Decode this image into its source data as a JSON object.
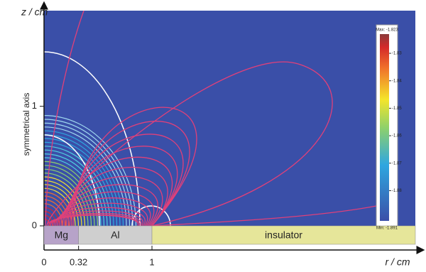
{
  "chart_data": {
    "type": "contour",
    "xlabel": "r / cm",
    "ylabel": "z / cm",
    "axis_note": "symmetrical axis",
    "xlim": [
      0,
      3.44
    ],
    "ylim": [
      0,
      1.8
    ],
    "xticks": [
      0,
      0.32,
      1
    ],
    "yticks": [
      0,
      1
    ],
    "regions": [
      {
        "label": "Mg",
        "color": "#b7a3c9"
      },
      {
        "label": "Al",
        "color": "#cfcfcf"
      },
      {
        "label": "insulator",
        "color": "#e6e69a"
      }
    ],
    "colorbar": {
      "clim": [
        -1.891,
        -1.823
      ],
      "clim_labels": [
        "Min: -1.891",
        "Max: -1.823"
      ],
      "ticks": [
        -1.83,
        -1.84,
        -1.85,
        -1.86,
        -1.87,
        -1.88
      ]
    }
  }
}
